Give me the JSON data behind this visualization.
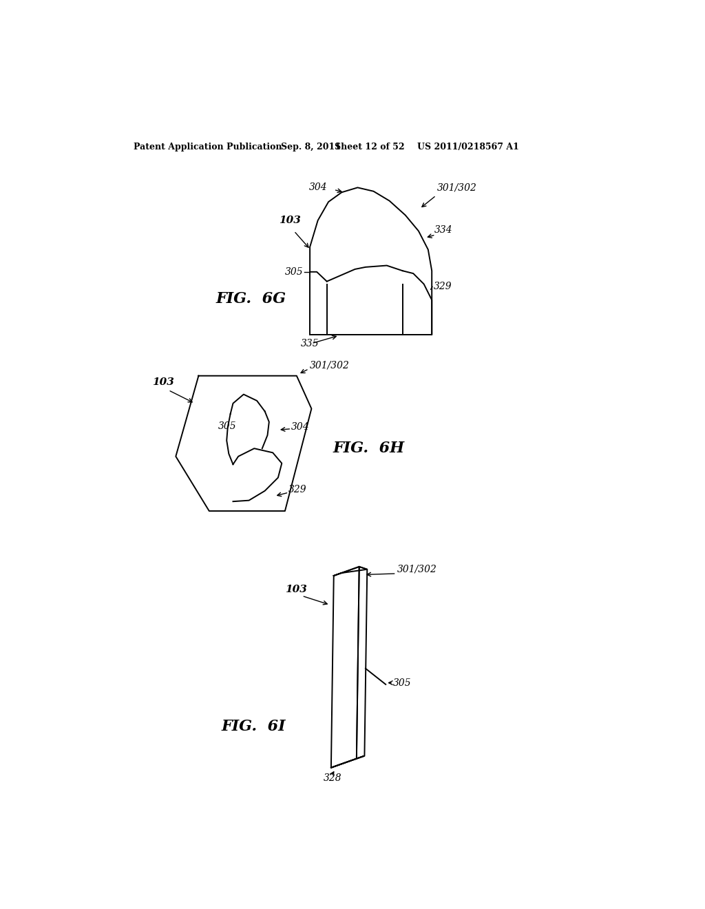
{
  "bg_color": "#ffffff",
  "header_text": "Patent Application Publication",
  "header_date": "Sep. 8, 2011",
  "header_sheet": "Sheet 12 of 52",
  "header_patent": "US 2011/0218567 A1",
  "fig6g_label": "FIG.  6G",
  "fig6h_label": "FIG.  6H",
  "fig6i_label": "FIG.  6I"
}
